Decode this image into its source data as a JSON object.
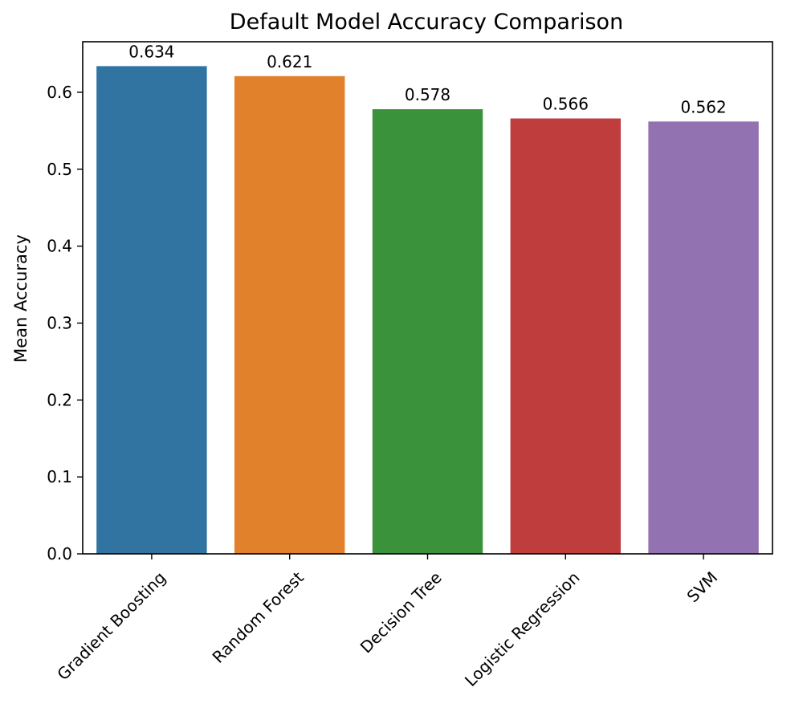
{
  "chart_data": {
    "type": "bar",
    "title": "Default Model Accuracy Comparison",
    "xlabel": "",
    "ylabel": "Mean Accuracy",
    "categories": [
      "Gradient Boosting",
      "Random Forest",
      "Decision Tree",
      "Logistic Regression",
      "SVM"
    ],
    "values": [
      0.634,
      0.621,
      0.578,
      0.566,
      0.562
    ],
    "data_labels": [
      "0.634",
      "0.621",
      "0.578",
      "0.566",
      "0.562"
    ],
    "colors": [
      "#3274a1",
      "#e1812c",
      "#3a923a",
      "#c03d3e",
      "#9372b2"
    ],
    "ylim": [
      0,
      0.6657
    ],
    "yticks": [
      0.0,
      0.1,
      0.2,
      0.3,
      0.4,
      0.5,
      0.6
    ],
    "ytick_labels": [
      "0.0",
      "0.1",
      "0.2",
      "0.3",
      "0.4",
      "0.5",
      "0.6"
    ],
    "grid": false,
    "legend": false
  }
}
